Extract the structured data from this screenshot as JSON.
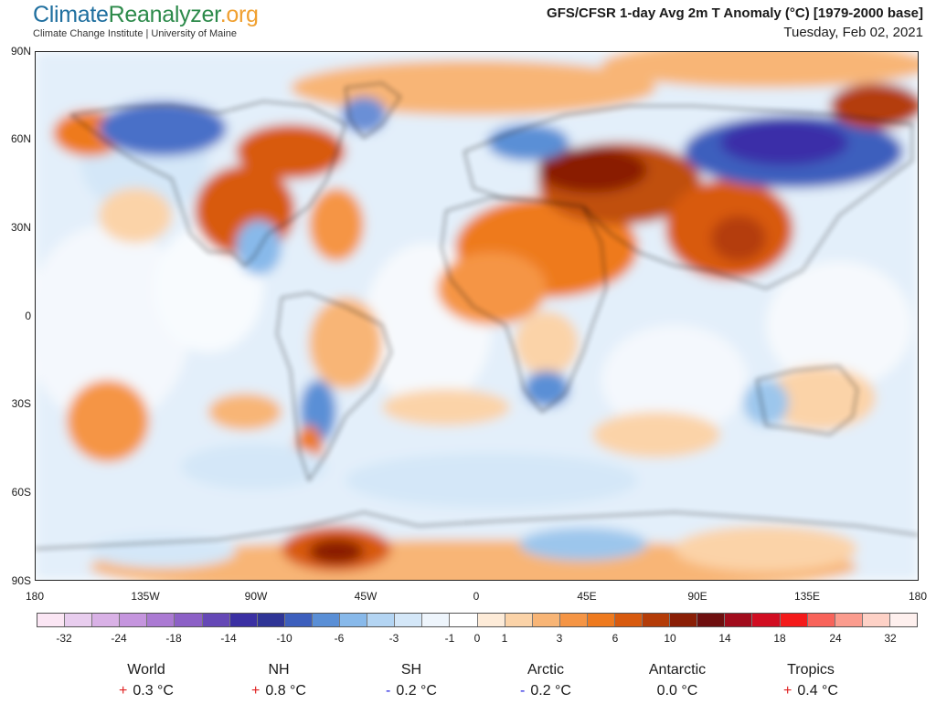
{
  "header": {
    "logo_part1": "Climate",
    "logo_part2": "Reanalyzer",
    "logo_part3": ".org",
    "logo_subtitle": "Climate Change Institute | University of Maine",
    "title": "GFS/CFSR 1-day Avg 2m T Anomaly (°C) [1979-2000 base]",
    "date": "Tuesday, Feb 02, 2021"
  },
  "map": {
    "lat_labels": [
      "90N",
      "60N",
      "30N",
      "0",
      "30S",
      "60S",
      "90S"
    ],
    "lon_labels": [
      "180",
      "135W",
      "90W",
      "45W",
      "0",
      "45E",
      "90E",
      "135E",
      "180"
    ]
  },
  "colorbar": {
    "colors": [
      "#fbe6f4",
      "#e8cdee",
      "#d9b1e6",
      "#c595de",
      "#ab7ad3",
      "#8c60c6",
      "#6548b6",
      "#3b30a3",
      "#2f3596",
      "#3d5fbd",
      "#5a8fd6",
      "#88b9ea",
      "#b4d5f3",
      "#d4e7f8",
      "#eef5fc",
      "#ffffff",
      "#fdebd8",
      "#fbd3a8",
      "#f8b576",
      "#f59545",
      "#ee7a1f",
      "#d85a0e",
      "#b43c08",
      "#8a1f06",
      "#6e0f0f",
      "#a10c1c",
      "#d10d21",
      "#f41a1a",
      "#f8635a",
      "#fb9c8e",
      "#fdd1c6",
      "#fef0ee"
    ],
    "labels": [
      "-32",
      "-24",
      "-18",
      "-14",
      "-10",
      "-6",
      "-3",
      "-1",
      "0",
      "1",
      "3",
      "6",
      "10",
      "14",
      "18",
      "24",
      "32"
    ]
  },
  "stats": [
    {
      "name": "World",
      "sign": "+",
      "value": "0.3 °C",
      "sign_color": "#e02020"
    },
    {
      "name": "NH",
      "sign": "+",
      "value": "0.8 °C",
      "sign_color": "#e02020"
    },
    {
      "name": "SH",
      "sign": "-",
      "value": "0.2 °C",
      "sign_color": "#2020e0"
    },
    {
      "name": "Arctic",
      "sign": "-",
      "value": "0.2 °C",
      "sign_color": "#2020e0"
    },
    {
      "name": "Antarctic",
      "sign": "",
      "value": "0.0 °C",
      "sign_color": "#000000"
    },
    {
      "name": "Tropics",
      "sign": "+",
      "value": "0.4 °C",
      "sign_color": "#e02020"
    }
  ],
  "palette": {
    "warm_light": "#fbd3a8",
    "warm_mid": "#f08a30",
    "warm_deep": "#c0500c",
    "warm_darkest": "#7a1a0c",
    "cool_light": "#d4e7f8",
    "cool_mid": "#9cc6ec",
    "cool_deep": "#4a6fc8",
    "cool_darkest": "#3b2fa8"
  }
}
